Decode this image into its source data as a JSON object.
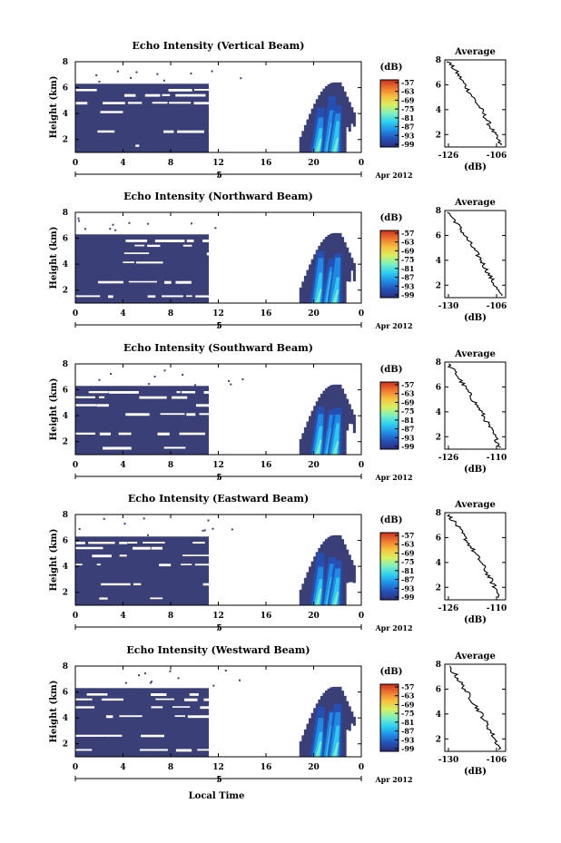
{
  "figure": {
    "xlabel": "Local Time",
    "panels": [
      {
        "title": "Echo Intensity (Vertical Beam)",
        "ylabel": "Height (km)",
        "date_label": "Apr 2012",
        "avg_title": "Average",
        "avg_xlabel": "(dB)",
        "avg_xticks": [
          "-126",
          "-106"
        ],
        "colorbar_title": "(dB)",
        "colorbar_ticks": [
          "-57",
          "-63",
          "-69",
          "-75",
          "-81",
          "-87",
          "-93",
          "-99"
        ]
      },
      {
        "title": "Echo Intensity (Northward Beam)",
        "ylabel": "Height (km)",
        "date_label": "Apr 2012",
        "avg_title": "Average",
        "avg_xlabel": "(dB)",
        "avg_xticks": [
          "-130",
          "-106"
        ],
        "colorbar_title": "(dB)",
        "colorbar_ticks": [
          "-57",
          "-63",
          "-69",
          "-75",
          "-81",
          "-87",
          "-93",
          "-99"
        ]
      },
      {
        "title": "Echo Intensity (Southward Beam)",
        "ylabel": "Height (km)",
        "date_label": "Apr 2012",
        "avg_title": "Average",
        "avg_xlabel": "(dB)",
        "avg_xticks": [
          "-126",
          "-110"
        ],
        "colorbar_title": "(dB)",
        "colorbar_ticks": [
          "-57",
          "-63",
          "-69",
          "-75",
          "-81",
          "-87",
          "-93",
          "-99"
        ]
      },
      {
        "title": "Echo Intensity (Eastward Beam)",
        "ylabel": "Height (km)",
        "date_label": "Apr 2012",
        "avg_title": "Average",
        "avg_xlabel": "(dB)",
        "avg_xticks": [
          "-126",
          "-110"
        ],
        "colorbar_title": "(dB)",
        "colorbar_ticks": [
          "-57",
          "-63",
          "-69",
          "-75",
          "-81",
          "-87",
          "-93",
          "-99"
        ]
      },
      {
        "title": "Echo Intensity (Westward Beam)",
        "ylabel": "Height (km)",
        "date_label": "Apr 2012",
        "avg_title": "Average",
        "avg_xlabel": "(dB)",
        "avg_xticks": [
          "-130",
          "-106"
        ],
        "colorbar_title": "(dB)",
        "colorbar_ticks": [
          "-57",
          "-63",
          "-69",
          "-75",
          "-81",
          "-87",
          "-93",
          "-99"
        ]
      }
    ]
  },
  "chart_data": {
    "type": "heatmap",
    "x_tick_labels": [
      "0",
      "4",
      "8",
      "12",
      "16",
      "20",
      "0"
    ],
    "x_day_label": "5",
    "xlim_hours": [
      0,
      24
    ],
    "y_tick_labels": [
      "2",
      "4",
      "6",
      "8"
    ],
    "ylim_km": [
      1,
      8
    ],
    "avg_y_tick_labels": [
      "2",
      "4",
      "6",
      "8"
    ],
    "colorbar_range_db": [
      -99,
      -57
    ],
    "colormap": [
      "#2b2f7a",
      "#2451b8",
      "#1f8fe8",
      "#2fd0f0",
      "#7cf0c0",
      "#d8f060",
      "#f8c040",
      "#f07830",
      "#c83020"
    ],
    "background_color": "#3a3f78",
    "echo_regions_hours": [
      [
        0,
        11.2
      ],
      [
        18.8,
        23.5
      ]
    ],
    "strong_echo_hours": [
      20.0,
      22.2
    ]
  }
}
